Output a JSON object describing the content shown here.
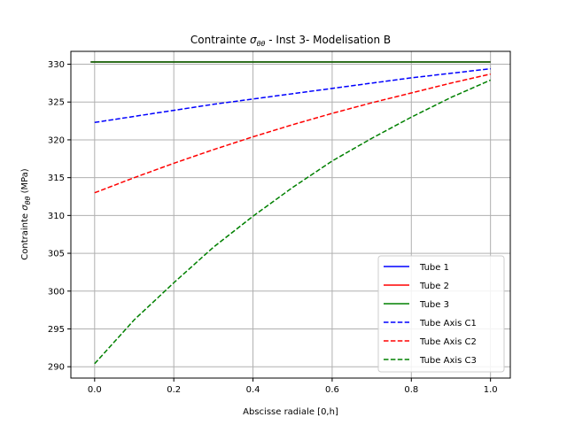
{
  "chart_data": {
    "type": "line",
    "title": "Contrainte σθθ - Inst 3- Modelisation B",
    "title_main": "Contrainte ",
    "title_sigma": "σ",
    "title_sub": "θθ",
    "title_rest": " - Inst 3- Modelisation B",
    "xlabel": "Abscisse radiale [0,h]",
    "ylabel": "Contrainte σθθ (MPa)",
    "ylabel_main": "Contrainte ",
    "ylabel_sigma": "σ",
    "ylabel_sub": "θθ",
    "ylabel_unit": " (MPa)",
    "xlim": [
      -0.06,
      1.05
    ],
    "ylim": [
      288.5,
      331.7
    ],
    "x_ticks": [
      0.0,
      0.2,
      0.4,
      0.6,
      0.8,
      1.0
    ],
    "x_tick_labels": [
      "0.0",
      "0.2",
      "0.4",
      "0.6",
      "0.8",
      "1.0"
    ],
    "y_ticks": [
      290,
      295,
      300,
      305,
      310,
      315,
      320,
      325,
      330
    ],
    "y_tick_labels": [
      "290",
      "295",
      "300",
      "305",
      "310",
      "315",
      "320",
      "325",
      "330"
    ],
    "grid": true,
    "legend_position": "lower-right",
    "x": [
      0.0,
      0.1,
      0.2,
      0.3,
      0.4,
      0.5,
      0.6,
      0.7,
      0.8,
      0.9,
      1.0
    ],
    "series": [
      {
        "name": "Tube 1",
        "color": "#0000ff",
        "dash": "solid",
        "x": [
          -0.01,
          1.0
        ],
        "values": [
          330.3,
          330.3
        ]
      },
      {
        "name": "Tube 2",
        "color": "#ff0000",
        "dash": "solid",
        "x": [
          -0.01,
          1.0
        ],
        "values": [
          330.3,
          330.3
        ]
      },
      {
        "name": "Tube 3",
        "color": "#008000",
        "dash": "solid",
        "x": [
          -0.01,
          1.0
        ],
        "values": [
          330.3,
          330.3
        ]
      },
      {
        "name": "Tube Axis C1",
        "color": "#0000ff",
        "dash": "dashed",
        "x": [
          0.0,
          0.1,
          0.2,
          0.3,
          0.4,
          0.5,
          0.6,
          0.7,
          0.8,
          0.9,
          1.0
        ],
        "values": [
          322.3,
          323.1,
          323.9,
          324.7,
          325.4,
          326.1,
          326.8,
          327.5,
          328.2,
          328.8,
          329.4
        ]
      },
      {
        "name": "Tube Axis C2",
        "color": "#ff0000",
        "dash": "dashed",
        "x": [
          0.0,
          0.1,
          0.2,
          0.3,
          0.4,
          0.5,
          0.6,
          0.7,
          0.8,
          0.9,
          1.0
        ],
        "values": [
          313.0,
          315.0,
          316.9,
          318.7,
          320.4,
          322.0,
          323.5,
          324.9,
          326.2,
          327.5,
          328.7
        ]
      },
      {
        "name": "Tube Axis C3",
        "color": "#008000",
        "dash": "dashed",
        "x": [
          0.0,
          0.1,
          0.2,
          0.3,
          0.4,
          0.5,
          0.6,
          0.7,
          0.8,
          0.9,
          1.0
        ],
        "values": [
          290.4,
          296.2,
          301.1,
          305.8,
          309.9,
          313.7,
          317.2,
          320.2,
          323.0,
          325.6,
          327.9
        ]
      }
    ]
  }
}
